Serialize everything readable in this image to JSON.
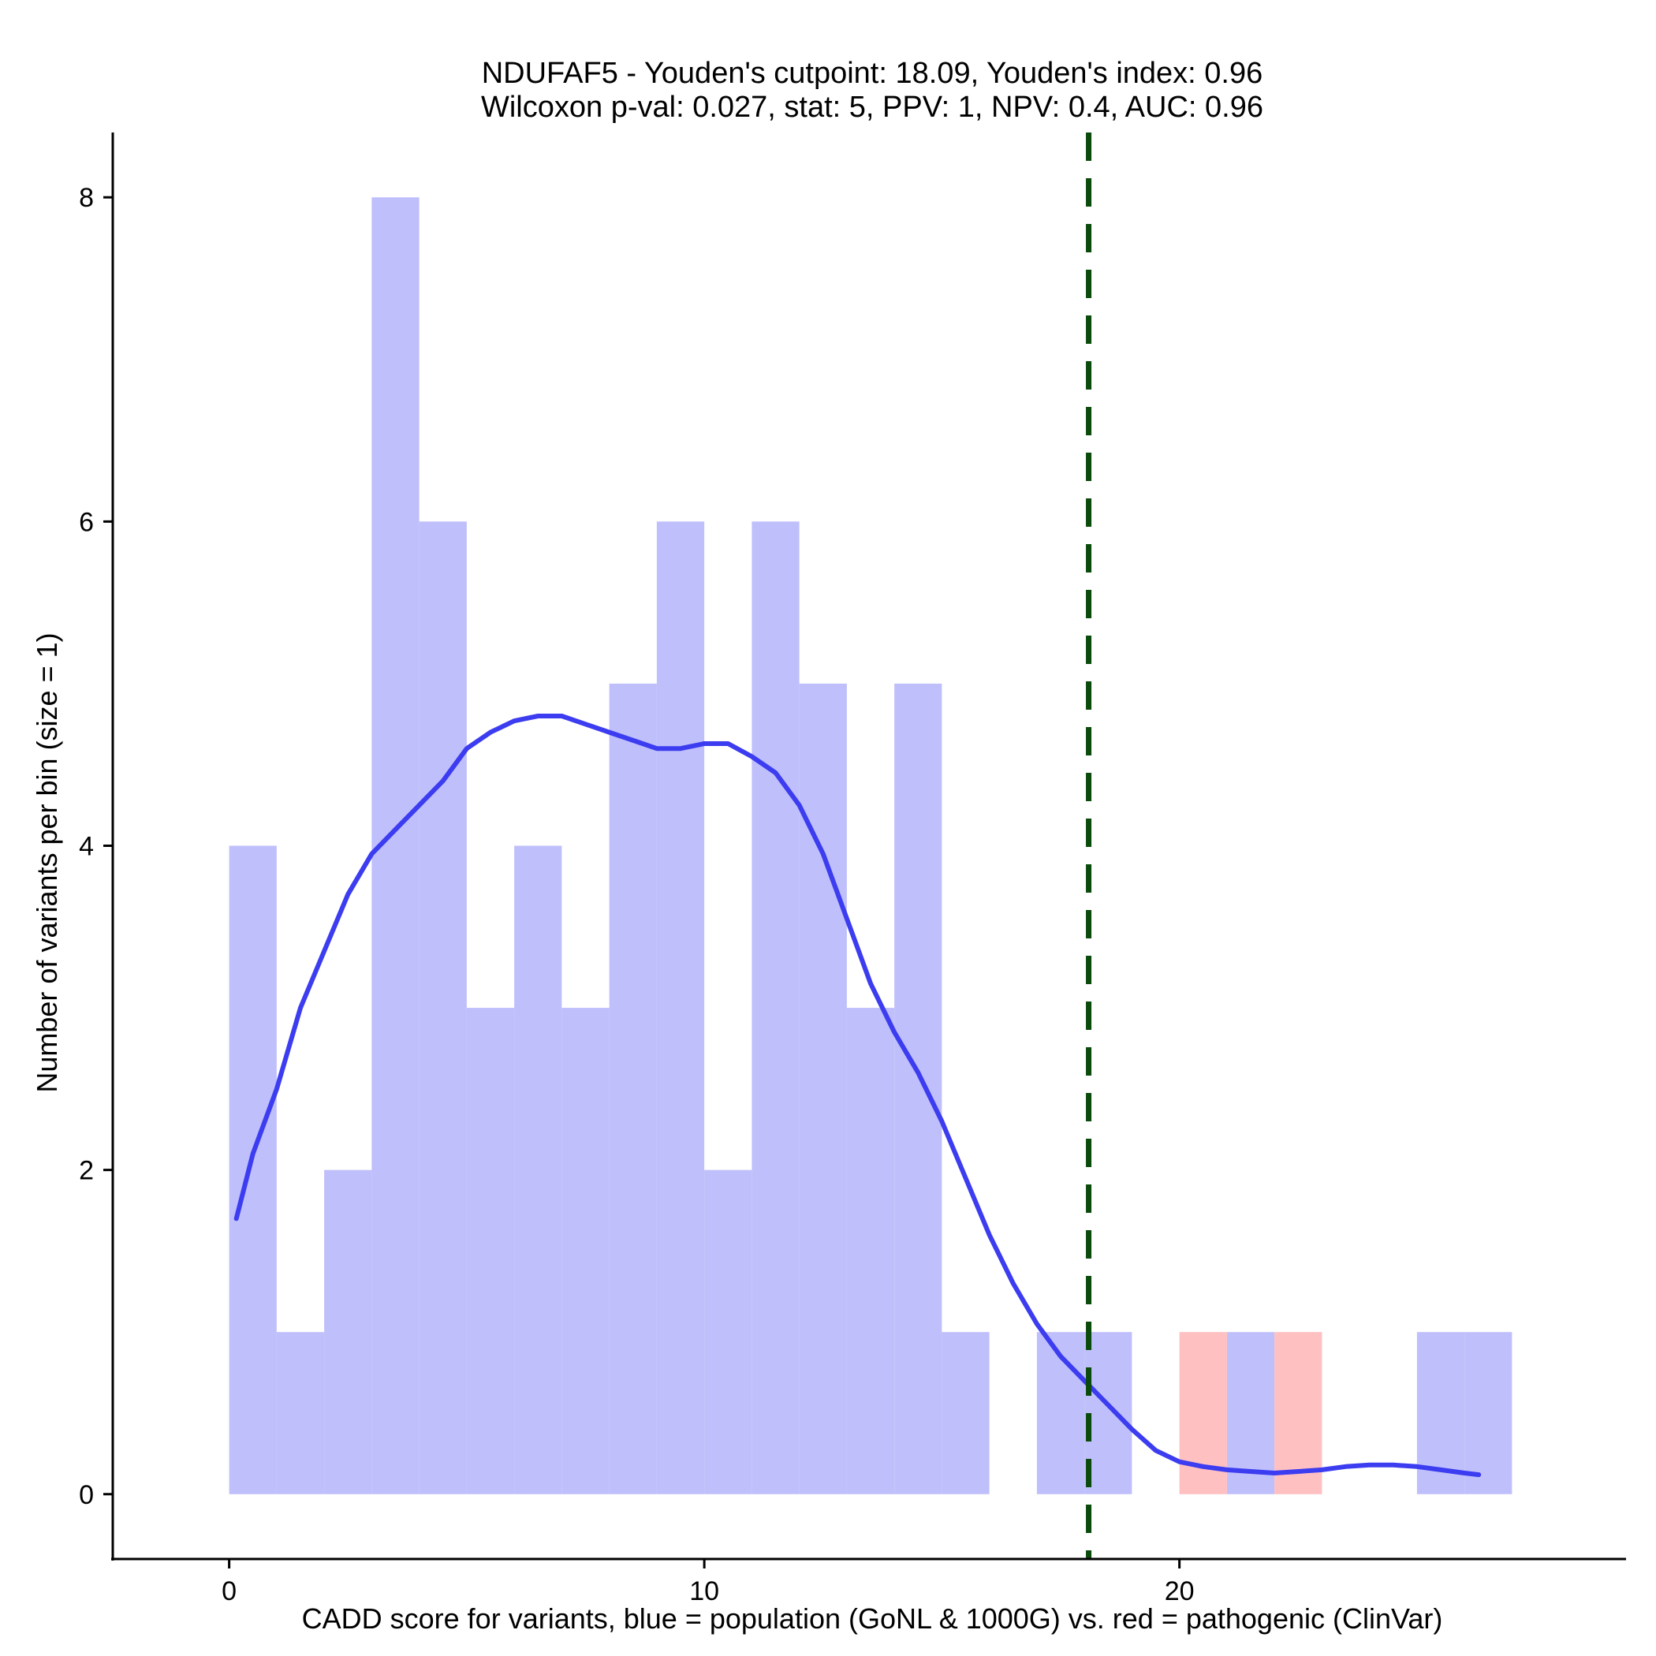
{
  "chart_data": {
    "type": "bar",
    "title_lines": [
      "NDUFAF5 - Youden's cutpoint: 18.09, Youden's index: 0.96",
      "Wilcoxon p-val: 0.027, stat: 5, PPV: 1, NPV: 0.4, AUC: 0.96"
    ],
    "xlabel": "CADD score for variants, blue = population (GoNL & 1000G) vs. red = pathogenic (ClinVar)",
    "ylabel": "Number of variants per bin (size = 1)",
    "xlim": [
      -2.45,
      29.4
    ],
    "ylim": [
      -0.4,
      8.4
    ],
    "x_ticks": [
      0,
      10,
      20
    ],
    "y_ticks": [
      0,
      2,
      4,
      6,
      8
    ],
    "bin_width": 1,
    "grid": false,
    "colors": {
      "population": "#bfbffc",
      "pathogenic": "#ffc0c2",
      "density": "#3c3cf0",
      "cutpoint": "#0a4a0a",
      "axis": "#000000"
    },
    "series": [
      {
        "bins": [
          {
            "x0": 0,
            "count": 4
          },
          {
            "x0": 1,
            "count": 1
          },
          {
            "x0": 2,
            "count": 2
          },
          {
            "x0": 3,
            "count": 8
          },
          {
            "x0": 4,
            "count": 6
          },
          {
            "x0": 5,
            "count": 3
          },
          {
            "x0": 6,
            "count": 4
          },
          {
            "x0": 7,
            "count": 3
          },
          {
            "x0": 8,
            "count": 5
          },
          {
            "x0": 9,
            "count": 6
          },
          {
            "x0": 10,
            "count": 2
          },
          {
            "x0": 11,
            "count": 6
          },
          {
            "x0": 12,
            "count": 5
          },
          {
            "x0": 13,
            "count": 3
          },
          {
            "x0": 14,
            "count": 5
          },
          {
            "x0": 15,
            "count": 1
          },
          {
            "x0": 17,
            "count": 1
          },
          {
            "x0": 18,
            "count": 1
          },
          {
            "x0": 21,
            "count": 1
          },
          {
            "x0": 25,
            "count": 1
          },
          {
            "x0": 26,
            "count": 1
          }
        ]
      },
      {
        "bins": [
          {
            "x0": 20,
            "count": 1
          },
          {
            "x0": 22,
            "count": 1
          }
        ]
      }
    ],
    "density_curve": [
      [
        0.15,
        1.7
      ],
      [
        0.5,
        2.1
      ],
      [
        1.0,
        2.5
      ],
      [
        1.5,
        3.0
      ],
      [
        2.0,
        3.35
      ],
      [
        2.5,
        3.7
      ],
      [
        3.0,
        3.95
      ],
      [
        3.5,
        4.1
      ],
      [
        4.0,
        4.25
      ],
      [
        4.5,
        4.4
      ],
      [
        5.0,
        4.6
      ],
      [
        5.5,
        4.7
      ],
      [
        6.0,
        4.77
      ],
      [
        6.5,
        4.8
      ],
      [
        7.0,
        4.8
      ],
      [
        7.5,
        4.75
      ],
      [
        8.0,
        4.7
      ],
      [
        8.5,
        4.65
      ],
      [
        9.0,
        4.6
      ],
      [
        9.5,
        4.6
      ],
      [
        10.0,
        4.63
      ],
      [
        10.5,
        4.63
      ],
      [
        11.0,
        4.55
      ],
      [
        11.5,
        4.45
      ],
      [
        12.0,
        4.25
      ],
      [
        12.5,
        3.95
      ],
      [
        13.0,
        3.55
      ],
      [
        13.5,
        3.15
      ],
      [
        14.0,
        2.85
      ],
      [
        14.5,
        2.6
      ],
      [
        15.0,
        2.3
      ],
      [
        15.5,
        1.95
      ],
      [
        16.0,
        1.6
      ],
      [
        16.5,
        1.3
      ],
      [
        17.0,
        1.05
      ],
      [
        17.5,
        0.85
      ],
      [
        18.0,
        0.7
      ],
      [
        18.5,
        0.55
      ],
      [
        19.0,
        0.4
      ],
      [
        19.5,
        0.27
      ],
      [
        20.0,
        0.2
      ],
      [
        20.5,
        0.17
      ],
      [
        21.0,
        0.15
      ],
      [
        21.5,
        0.14
      ],
      [
        22.0,
        0.13
      ],
      [
        22.5,
        0.14
      ],
      [
        23.0,
        0.15
      ],
      [
        23.5,
        0.17
      ],
      [
        24.0,
        0.18
      ],
      [
        24.5,
        0.18
      ],
      [
        25.0,
        0.17
      ],
      [
        25.5,
        0.15
      ],
      [
        26.0,
        0.13
      ],
      [
        26.3,
        0.12
      ]
    ],
    "cutpoint": 18.09
  }
}
